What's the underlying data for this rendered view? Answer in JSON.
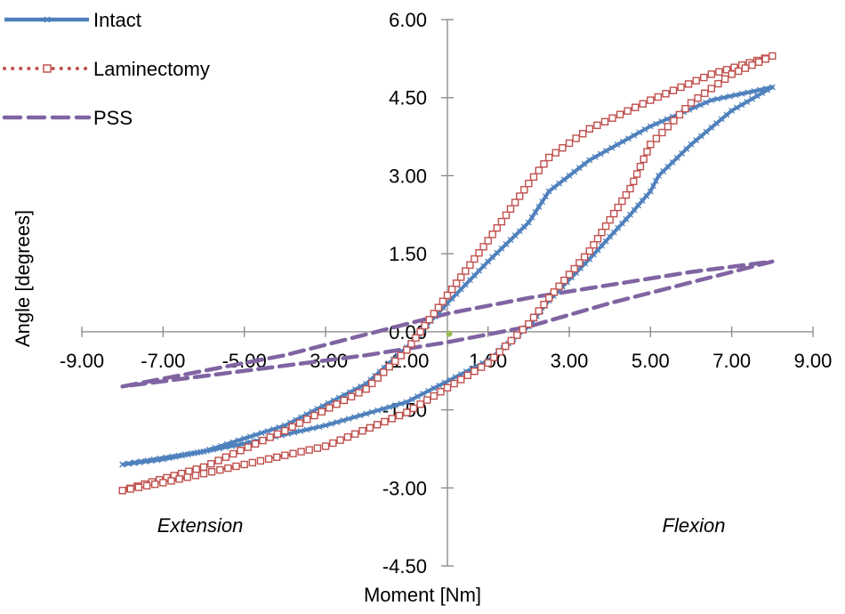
{
  "chart_data": {
    "type": "line",
    "title": "",
    "xlabel": "Moment [Nm]",
    "ylabel": "Angle [degrees]",
    "xlim": [
      -9,
      9
    ],
    "ylim": [
      -4.5,
      6
    ],
    "x_ticks": [
      "-9.00",
      "-7.00",
      "-5.00",
      "-3.00",
      "-1.00",
      "1.00",
      "3.00",
      "5.00",
      "7.00",
      "9.00"
    ],
    "y_ticks": [
      "-4.50",
      "-3.00",
      "-1.50",
      "0.00",
      "1.50",
      "3.00",
      "4.50",
      "6.00"
    ],
    "grid": false,
    "legend_position": "top-left",
    "annotations": {
      "left": "Extension",
      "right": "Flexion"
    },
    "series": [
      {
        "name": "Intact",
        "color": "#4f81bd",
        "style": "solid",
        "marker": "star",
        "x": [
          -8.0,
          -6.0,
          -4.0,
          -2.0,
          -1.0,
          0.0,
          1.0,
          2.0,
          2.5,
          3.5,
          5.0,
          6.5,
          8.0,
          7.0,
          6.0,
          5.2,
          5.0,
          4.5,
          3.5,
          2.5,
          2.0,
          1.0,
          -1.0,
          -3.0,
          -5.0,
          -7.0,
          -8.0
        ],
        "y": [
          -2.55,
          -2.3,
          -1.8,
          -1.0,
          -0.3,
          0.55,
          1.35,
          2.1,
          2.7,
          3.3,
          3.95,
          4.45,
          4.7,
          4.25,
          3.6,
          3.0,
          2.7,
          2.25,
          1.4,
          0.6,
          0.1,
          -0.55,
          -1.35,
          -1.8,
          -2.15,
          -2.45,
          -2.55
        ]
      },
      {
        "name": "Laminectomy",
        "color": "#c0504d",
        "style": "dotted",
        "marker": "square",
        "x": [
          -8.0,
          -6.0,
          -4.0,
          -2.0,
          -1.0,
          0.0,
          1.0,
          2.0,
          2.5,
          3.5,
          5.0,
          6.5,
          8.0,
          7.0,
          6.0,
          5.0,
          4.5,
          4.0,
          3.5,
          3.0,
          2.5,
          2.0,
          1.0,
          -1.0,
          -3.0,
          -5.0,
          -7.0,
          -8.0
        ],
        "y": [
          -3.05,
          -2.6,
          -1.9,
          -1.1,
          -0.35,
          0.7,
          1.75,
          2.85,
          3.35,
          3.9,
          4.45,
          4.95,
          5.3,
          4.95,
          4.4,
          3.6,
          2.75,
          2.15,
          1.55,
          1.1,
          0.65,
          0.15,
          -0.6,
          -1.55,
          -2.2,
          -2.55,
          -2.9,
          -3.05
        ]
      },
      {
        "name": "PSS",
        "color": "#8064a2",
        "style": "dashed",
        "marker": "none",
        "x": [
          -8.0,
          -6.0,
          -4.0,
          -2.0,
          0.0,
          2.0,
          4.0,
          6.0,
          8.0,
          6.0,
          4.0,
          2.0,
          0.0,
          -2.0,
          -4.0,
          -6.0,
          -8.0
        ],
        "y": [
          -1.05,
          -0.75,
          -0.45,
          -0.05,
          0.35,
          0.65,
          0.9,
          1.15,
          1.35,
          0.95,
          0.55,
          0.1,
          -0.2,
          -0.45,
          -0.65,
          -0.85,
          -1.05
        ]
      }
    ]
  }
}
